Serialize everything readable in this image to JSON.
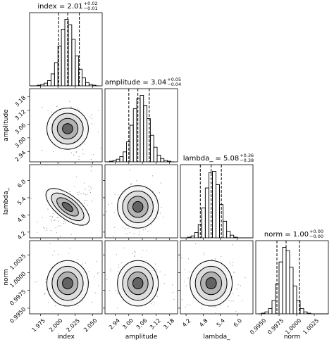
{
  "chart_data": {
    "type": "corner",
    "color": "#000000",
    "params": [
      {
        "name": "index",
        "title": "index = 2.01",
        "title_upper": "+0.02",
        "title_lower": "−0.01",
        "lim": [
          1.959,
          2.064
        ],
        "ticks": [
          1.975,
          {
            "value": 2.0,
            "label": "2.000"
          },
          2.025,
          {
            "value": 2.05,
            "label": "2.050"
          }
        ],
        "quantiles": [
          2.001,
          2.014,
          2.031
        ],
        "bins": [
          1.96,
          1.965,
          1.97,
          1.975,
          1.98,
          1.985,
          1.99,
          1.995,
          2.0,
          2.005,
          2.01,
          2.015,
          2.02,
          2.025,
          2.03,
          2.035,
          2.04,
          2.045,
          2.05,
          2.055,
          2.06
        ],
        "counts": [
          0,
          0,
          1,
          2,
          4,
          8,
          18,
          35,
          60,
          85,
          100,
          92,
          70,
          45,
          25,
          12,
          5,
          2,
          1,
          0
        ]
      },
      {
        "name": "amplitude",
        "title": "amplitude = 3.04",
        "title_upper": "+0.05",
        "title_lower": "−0.04",
        "lim": [
          2.895,
          3.215
        ],
        "ticks": [
          2.94,
          {
            "value": 3.0,
            "label": "3.00"
          },
          3.06,
          3.12,
          3.18
        ],
        "quantiles": [
          3.0,
          3.04,
          3.09
        ],
        "bins": [
          2.9,
          2.915,
          2.93,
          2.945,
          2.96,
          2.975,
          2.99,
          3.005,
          3.02,
          3.035,
          3.05,
          3.065,
          3.08,
          3.095,
          3.11,
          3.125,
          3.14,
          3.155,
          3.17,
          3.185,
          3.2
        ],
        "counts": [
          0,
          1,
          2,
          4,
          8,
          15,
          30,
          55,
          80,
          95,
          100,
          85,
          65,
          40,
          22,
          10,
          5,
          2,
          1,
          0
        ]
      },
      {
        "name": "lambda_",
        "title": "lambda_ = 5.08",
        "title_upper": "+0.36",
        "title_lower": "−0.38",
        "lim": [
          4.0,
          6.55
        ],
        "ticks": [
          4.2,
          4.8,
          5.4,
          {
            "value": 6.0,
            "label": "6.0"
          }
        ],
        "quantiles": [
          4.7,
          5.08,
          5.44
        ],
        "bins": [
          4.0,
          4.125,
          4.25,
          4.375,
          4.5,
          4.625,
          4.75,
          4.875,
          5.0,
          5.125,
          5.25,
          5.375,
          5.5,
          5.625,
          5.75,
          5.875,
          6.0,
          6.125,
          6.25,
          6.375,
          6.5
        ],
        "counts": [
          0,
          0,
          1,
          3,
          8,
          20,
          45,
          75,
          98,
          100,
          80,
          50,
          25,
          10,
          4,
          1,
          0,
          0,
          0,
          0
        ]
      },
      {
        "name": "norm",
        "title": "norm = 1.00",
        "title_upper": "+0.00",
        "title_lower": "−0.00",
        "lim": [
          0.9942,
          1.0045
        ],
        "ticks": [
          {
            "value": 0.995,
            "label": "0.9950"
          },
          0.9975,
          {
            "value": 1.0,
            "label": "1.0000"
          },
          1.0025
        ],
        "quantiles": [
          0.9972,
          0.9985,
          1.0004
        ],
        "bins": [
          0.9945,
          0.995,
          0.9955,
          0.996,
          0.9965,
          0.997,
          0.9975,
          0.998,
          0.9985,
          0.999,
          0.9995,
          1.0,
          1.0005,
          1.001,
          1.0015,
          1.002,
          1.0025,
          1.003,
          1.0035,
          1.004,
          1.0045
        ],
        "counts": [
          0,
          1,
          3,
          8,
          20,
          45,
          78,
          100,
          95,
          70,
          42,
          20,
          8,
          3,
          1,
          0,
          0,
          0,
          0,
          0
        ]
      }
    ]
  }
}
